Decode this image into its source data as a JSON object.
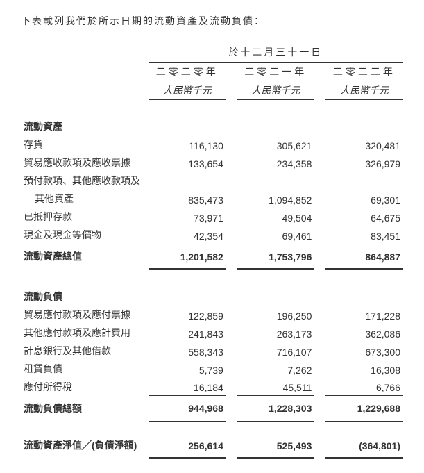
{
  "intro": "下表載列我們於所示日期的流動資產及流動負債：",
  "period_header": "於十二月三十一日",
  "years": {
    "y1": "二零二零年",
    "y2": "二零二一年",
    "y3": "二零二二年"
  },
  "unit": "人民幣千元",
  "sections": {
    "assets": {
      "title": "流動資產",
      "rows": {
        "inventory": {
          "label": "存貨",
          "v1": "116,130",
          "v2": "305,621",
          "v3": "320,481"
        },
        "trade_recv": {
          "label": "貿易應收款項及應收票據",
          "v1": "133,654",
          "v2": "234,358",
          "v3": "326,979"
        },
        "prepay_l1": {
          "label": "預付款項、其他應收款項及"
        },
        "prepay_l2": {
          "label": "其他資產",
          "v1": "835,473",
          "v2": "1,094,852",
          "v3": "69,301"
        },
        "pledged": {
          "label": "已抵押存款",
          "v1": "73,971",
          "v2": "49,504",
          "v3": "64,675"
        },
        "cash": {
          "label": "現金及現金等價物",
          "v1": "42,354",
          "v2": "69,461",
          "v3": "83,451"
        }
      },
      "total": {
        "label": "流動資產總值",
        "v1": "1,201,582",
        "v2": "1,753,796",
        "v3": "864,887"
      }
    },
    "liabilities": {
      "title": "流動負債",
      "rows": {
        "trade_pay": {
          "label": "貿易應付款項及應付票據",
          "v1": "122,859",
          "v2": "196,250",
          "v3": "171,228"
        },
        "other_pay": {
          "label": "其他應付款項及應計費用",
          "v1": "241,843",
          "v2": "263,173",
          "v3": "362,086"
        },
        "bank_loan": {
          "label": "計息銀行及其他借款",
          "v1": "558,343",
          "v2": "716,107",
          "v3": "673,300"
        },
        "lease": {
          "label": "租賃負債",
          "v1": "5,739",
          "v2": "7,262",
          "v3": "16,308"
        },
        "tax": {
          "label": "應付所得稅",
          "v1": "16,184",
          "v2": "45,511",
          "v3": "6,766"
        }
      },
      "total": {
        "label": "流動負債總額",
        "v1": "944,968",
        "v2": "1,228,303",
        "v3": "1,229,688"
      }
    },
    "net": {
      "label": "流動資產淨值╱(負債淨額)",
      "v1": "256,614",
      "v2": "525,493",
      "v3": "(364,801)"
    }
  }
}
